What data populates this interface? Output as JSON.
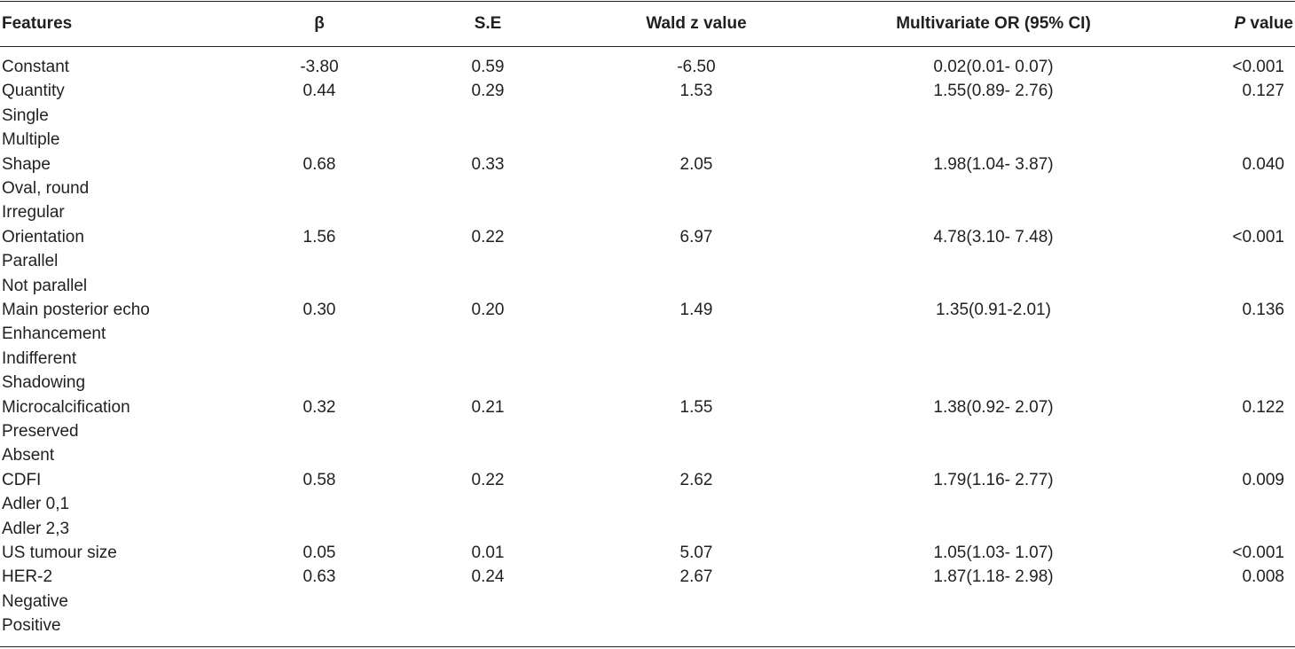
{
  "headers": {
    "features": "Features",
    "beta": "β",
    "se": "S.E",
    "wald": "Wald z value",
    "or": "Multivariate OR (95% CI)",
    "p_italic": "P",
    "p_rest": " value"
  },
  "rows": [
    {
      "feature": "Constant",
      "beta": "-3.80",
      "se": "0.59",
      "wald": "-6.50",
      "or": "0.02(0.01- 0.07)",
      "p": "<0.001"
    },
    {
      "feature": "Quantity",
      "beta": "0.44",
      "se": "0.29",
      "wald": "1.53",
      "or": "1.55(0.89- 2.76)",
      "p": "0.127"
    },
    {
      "feature": "Single",
      "beta": "",
      "se": "",
      "wald": "",
      "or": "",
      "p": ""
    },
    {
      "feature": "Multiple",
      "beta": "",
      "se": "",
      "wald": "",
      "or": "",
      "p": ""
    },
    {
      "feature": "Shape",
      "beta": "0.68",
      "se": "0.33",
      "wald": "2.05",
      "or": "1.98(1.04- 3.87)",
      "p": "0.040"
    },
    {
      "feature": "Oval, round",
      "beta": "",
      "se": "",
      "wald": "",
      "or": "",
      "p": ""
    },
    {
      "feature": "Irregular",
      "beta": "",
      "se": "",
      "wald": "",
      "or": "",
      "p": ""
    },
    {
      "feature": "Orientation",
      "beta": "1.56",
      "se": "0.22",
      "wald": "6.97",
      "or": "4.78(3.10- 7.48)",
      "p": "<0.001"
    },
    {
      "feature": "Parallel",
      "beta": "",
      "se": "",
      "wald": "",
      "or": "",
      "p": ""
    },
    {
      "feature": "Not parallel",
      "beta": "",
      "se": "",
      "wald": "",
      "or": "",
      "p": ""
    },
    {
      "feature": "Main posterior echo",
      "beta": "0.30",
      "se": "0.20",
      "wald": "1.49",
      "or": "1.35(0.91-2.01)",
      "p": "0.136"
    },
    {
      "feature": "Enhancement",
      "beta": "",
      "se": "",
      "wald": "",
      "or": "",
      "p": ""
    },
    {
      "feature": "Indifferent",
      "beta": "",
      "se": "",
      "wald": "",
      "or": "",
      "p": ""
    },
    {
      "feature": "Shadowing",
      "beta": "",
      "se": "",
      "wald": "",
      "or": "",
      "p": ""
    },
    {
      "feature": "Microcalcification",
      "beta": "0.32",
      "se": "0.21",
      "wald": "1.55",
      "or": "1.38(0.92- 2.07)",
      "p": "0.122"
    },
    {
      "feature": "Preserved",
      "beta": "",
      "se": "",
      "wald": "",
      "or": "",
      "p": ""
    },
    {
      "feature": "Absent",
      "beta": "",
      "se": "",
      "wald": "",
      "or": "",
      "p": ""
    },
    {
      "feature": "CDFI",
      "beta": "0.58",
      "se": "0.22",
      "wald": "2.62",
      "or": "1.79(1.16- 2.77)",
      "p": "0.009"
    },
    {
      "feature": "Adler 0,1",
      "beta": "",
      "se": "",
      "wald": "",
      "or": "",
      "p": ""
    },
    {
      "feature": "Adler 2,3",
      "beta": "",
      "se": "",
      "wald": "",
      "or": "",
      "p": ""
    },
    {
      "feature": "US tumour size",
      "beta": "0.05",
      "se": "0.01",
      "wald": "5.07",
      "or": "1.05(1.03- 1.07)",
      "p": "<0.001"
    },
    {
      "feature": "HER-2",
      "beta": "0.63",
      "se": "0.24",
      "wald": "2.67",
      "or": "1.87(1.18- 2.98)",
      "p": "0.008"
    },
    {
      "feature": "Negative",
      "beta": "",
      "se": "",
      "wald": "",
      "or": "",
      "p": ""
    },
    {
      "feature": "Positive",
      "beta": "",
      "se": "",
      "wald": "",
      "or": "",
      "p": ""
    }
  ]
}
